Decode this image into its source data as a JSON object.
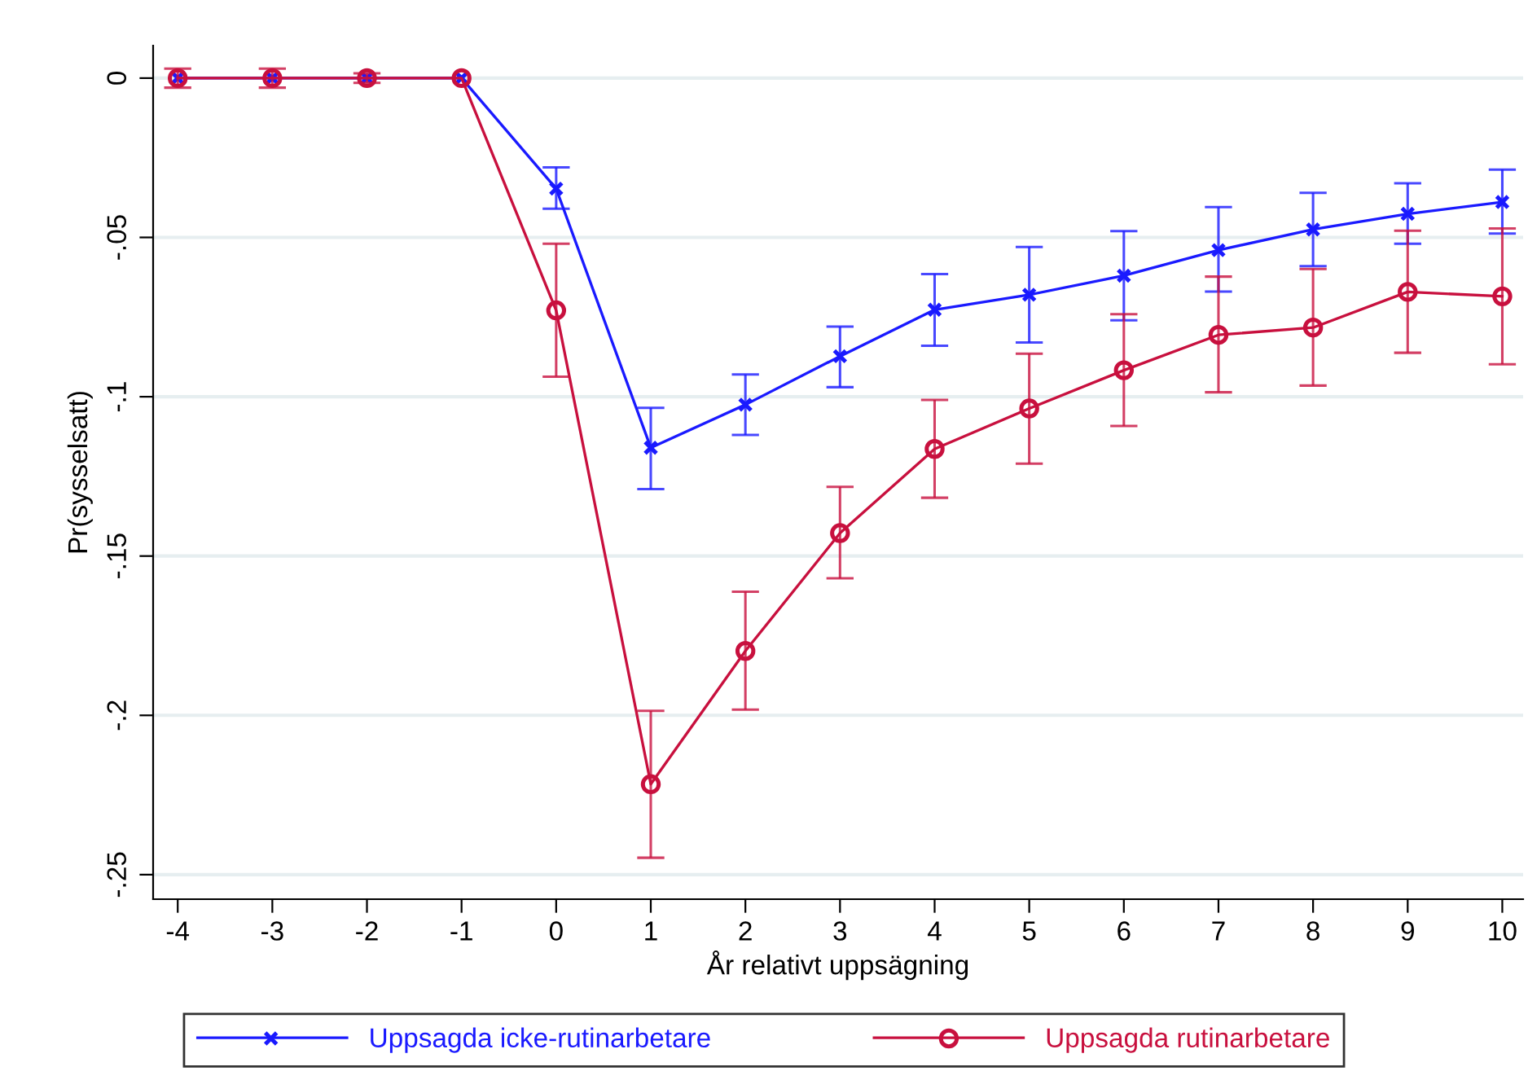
{
  "chart_data": {
    "type": "line",
    "xlabel": "År relativt uppsägning",
    "ylabel": "Pr(sysselsatt)",
    "x": [
      -4,
      -3,
      -2,
      -1,
      0,
      1,
      2,
      3,
      4,
      5,
      6,
      7,
      8,
      9,
      10
    ],
    "series": [
      {
        "name": "Uppsagda icke-rutinarbetare",
        "color": "#1a1aff",
        "marker": "cross",
        "values": [
          0,
          0,
          0,
          0,
          -0.0347,
          -0.116,
          -0.1025,
          -0.0873,
          -0.0727,
          -0.068,
          -0.062,
          -0.054,
          -0.0475,
          -0.0426,
          -0.0389
        ],
        "errors": [
          null,
          null,
          null,
          null,
          [
            -0.041,
            -0.028
          ],
          [
            -0.129,
            -0.1035
          ],
          [
            -0.112,
            -0.093
          ],
          [
            -0.097,
            -0.078
          ],
          [
            -0.084,
            -0.0615
          ],
          [
            -0.083,
            -0.053
          ],
          [
            -0.076,
            -0.048
          ],
          [
            -0.067,
            -0.0405
          ],
          [
            -0.059,
            -0.036
          ],
          [
            -0.052,
            -0.033
          ],
          [
            -0.0488,
            -0.0287
          ]
        ]
      },
      {
        "name": "Uppsagda rutinarbetare",
        "color": "#c8103e",
        "marker": "circle",
        "values": [
          0,
          0,
          0,
          0,
          -0.0729,
          -0.2216,
          -0.1798,
          -0.1428,
          -0.1164,
          -0.1037,
          -0.0917,
          -0.0806,
          -0.0783,
          -0.0671,
          -0.0685
        ],
        "errors": [
          [
            -0.003,
            0.003
          ],
          [
            -0.003,
            0.003
          ],
          [
            -0.0015,
            0.0015
          ],
          null,
          [
            -0.0937,
            -0.052
          ],
          [
            -0.2447,
            -0.1986
          ],
          [
            -0.1982,
            -0.1612
          ],
          [
            -0.157,
            -0.1283
          ],
          [
            -0.1317,
            -0.101
          ],
          [
            -0.121,
            -0.0865
          ],
          [
            -0.1092,
            -0.0741
          ],
          [
            -0.0986,
            -0.0623
          ],
          [
            -0.0965,
            -0.0599
          ],
          [
            -0.0862,
            -0.0479
          ],
          [
            -0.0898,
            -0.0472
          ]
        ]
      }
    ],
    "xlim": [
      -4.26,
      10.22
    ],
    "xticks": [
      -4,
      -3,
      -2,
      -1,
      0,
      1,
      2,
      3,
      4,
      5,
      6,
      7,
      8,
      9,
      10
    ],
    "ylim": [
      -0.2577,
      0.0102
    ],
    "yticks": [
      {
        "value": 0,
        "label": "0"
      },
      {
        "value": -0.05,
        "label": "-.05"
      },
      {
        "value": -0.1,
        "label": "-.1"
      },
      {
        "value": -0.15,
        "label": "-.15"
      },
      {
        "value": -0.2,
        "label": "-.2"
      },
      {
        "value": -0.25,
        "label": "-.25"
      }
    ],
    "grid": "y",
    "legend": "bottom",
    "line_style": "solid"
  }
}
